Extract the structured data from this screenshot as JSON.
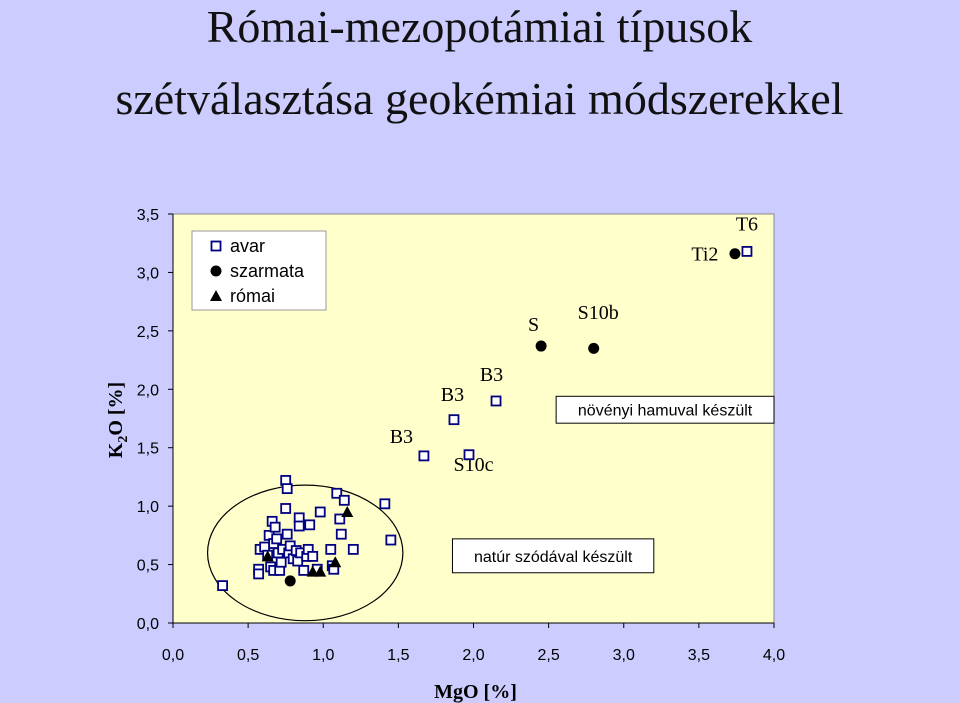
{
  "title_line1": "Római-mezopotámiai típusok",
  "title_line2": "szétválasztása geokémiai módszerekkel",
  "chart_data": {
    "type": "scatter",
    "xlabel": "MgO [%]",
    "ylabel_main": "K",
    "ylabel_sub": "2",
    "ylabel_rest": "O [%]",
    "xlim": [
      0,
      4
    ],
    "ylim": [
      0,
      3.5
    ],
    "xticks": [
      "0,0",
      "0,5",
      "1,0",
      "1,5",
      "2,0",
      "2,5",
      "3,0",
      "3,5",
      "4,0"
    ],
    "yticks": [
      "0,0",
      "0,5",
      "1,0",
      "1,5",
      "2,0",
      "2,5",
      "3,0",
      "3,5"
    ],
    "plot_background": "#ffffcc",
    "marker_color": "#000080",
    "legend_position": "top-left",
    "series": [
      {
        "name": "avar",
        "marker": "open-square",
        "points": [
          [
            0.33,
            0.32
          ],
          [
            0.57,
            0.46
          ],
          [
            0.57,
            0.42
          ],
          [
            0.58,
            0.63
          ],
          [
            0.61,
            0.65
          ],
          [
            0.63,
            0.58
          ],
          [
            0.64,
            0.75
          ],
          [
            0.65,
            0.48
          ],
          [
            0.66,
            0.87
          ],
          [
            0.67,
            0.68
          ],
          [
            0.67,
            0.45
          ],
          [
            0.68,
            0.82
          ],
          [
            0.69,
            0.72
          ],
          [
            0.7,
            0.6
          ],
          [
            0.71,
            0.45
          ],
          [
            0.72,
            0.52
          ],
          [
            0.73,
            0.63
          ],
          [
            0.75,
            1.22
          ],
          [
            0.75,
            0.98
          ],
          [
            0.76,
            1.15
          ],
          [
            0.76,
            0.76
          ],
          [
            0.77,
            0.6
          ],
          [
            0.78,
            0.66
          ],
          [
            0.8,
            0.55
          ],
          [
            0.82,
            0.62
          ],
          [
            0.83,
            0.53
          ],
          [
            0.84,
            0.9
          ],
          [
            0.84,
            0.83
          ],
          [
            0.85,
            0.6
          ],
          [
            0.87,
            0.45
          ],
          [
            0.89,
            0.57
          ],
          [
            0.9,
            0.63
          ],
          [
            0.91,
            0.84
          ],
          [
            0.93,
            0.57
          ],
          [
            0.96,
            0.46
          ],
          [
            0.98,
            0.95
          ],
          [
            1.05,
            0.63
          ],
          [
            1.06,
            0.49
          ],
          [
            1.07,
            0.46
          ],
          [
            1.09,
            1.11
          ],
          [
            1.11,
            0.89
          ],
          [
            1.12,
            0.76
          ],
          [
            1.14,
            1.05
          ],
          [
            1.2,
            0.63
          ],
          [
            1.41,
            1.02
          ],
          [
            1.45,
            0.71
          ],
          [
            1.67,
            1.43
          ],
          [
            1.87,
            1.74
          ],
          [
            1.97,
            1.44
          ],
          [
            2.15,
            1.9
          ],
          [
            3.82,
            3.18
          ]
        ]
      },
      {
        "name": "szarmata",
        "marker": "filled-circle",
        "points": [
          [
            0.78,
            0.36
          ],
          [
            2.45,
            2.37
          ],
          [
            2.8,
            2.35
          ],
          [
            3.74,
            3.16
          ]
        ]
      },
      {
        "name": "római",
        "marker": "filled-triangle",
        "points": [
          [
            0.63,
            0.57
          ],
          [
            0.93,
            0.44
          ],
          [
            0.98,
            0.44
          ],
          [
            1.08,
            0.52
          ],
          [
            1.16,
            0.95
          ]
        ]
      }
    ],
    "annotations": [
      {
        "text": "B3",
        "x": 1.52,
        "y": 1.54
      },
      {
        "text": "B3",
        "x": 1.86,
        "y": 1.9
      },
      {
        "text": "B3",
        "x": 2.12,
        "y": 2.07
      },
      {
        "text": "S10c",
        "x": 2.0,
        "y": 1.3
      },
      {
        "text": "S",
        "x": 2.4,
        "y": 2.5
      },
      {
        "text": "S10b",
        "x": 2.83,
        "y": 2.6
      },
      {
        "text": "Ti2",
        "x": 3.54,
        "y": 3.1
      },
      {
        "text": "T6",
        "x": 3.82,
        "y": 3.36
      }
    ],
    "boxes": [
      {
        "text": "növényi hamuval készült",
        "x0": 2.55,
        "x1": 4.0,
        "y0": 1.71,
        "y1": 1.94
      },
      {
        "text": "natúr szódával készült",
        "x0": 1.86,
        "x1": 3.2,
        "y0": 0.43,
        "y1": 0.72
      }
    ],
    "ellipse": {
      "cx": 0.88,
      "cy": 0.6,
      "rx": 0.65,
      "ry": 0.58
    }
  }
}
